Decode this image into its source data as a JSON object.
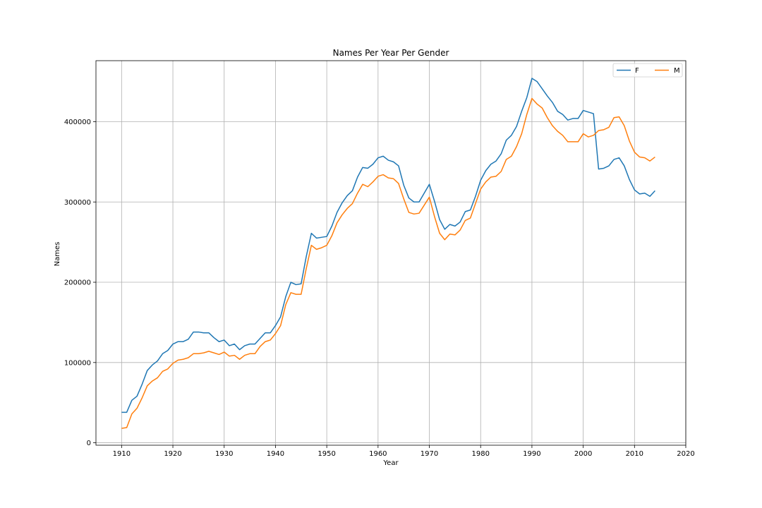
{
  "chart_data": {
    "type": "line",
    "title": "Names Per Year Per Gender",
    "xlabel": "Year",
    "ylabel": "Names",
    "xlim": [
      1905,
      2020
    ],
    "ylim": [
      -3000,
      476000
    ],
    "grid": true,
    "legend_position": "top-right",
    "xticks": [
      1910,
      1920,
      1930,
      1940,
      1950,
      1960,
      1970,
      1980,
      1990,
      2000,
      2010,
      2020
    ],
    "yticks": [
      0,
      100000,
      200000,
      300000,
      400000
    ],
    "x": [
      1910,
      1911,
      1912,
      1913,
      1914,
      1915,
      1916,
      1917,
      1918,
      1919,
      1920,
      1921,
      1922,
      1923,
      1924,
      1925,
      1926,
      1927,
      1928,
      1929,
      1930,
      1931,
      1932,
      1933,
      1934,
      1935,
      1936,
      1937,
      1938,
      1939,
      1940,
      1941,
      1942,
      1943,
      1944,
      1945,
      1946,
      1947,
      1948,
      1949,
      1950,
      1951,
      1952,
      1953,
      1954,
      1955,
      1956,
      1957,
      1958,
      1959,
      1960,
      1961,
      1962,
      1963,
      1964,
      1965,
      1966,
      1967,
      1968,
      1969,
      1970,
      1971,
      1972,
      1973,
      1974,
      1975,
      1976,
      1977,
      1978,
      1979,
      1980,
      1981,
      1982,
      1983,
      1984,
      1985,
      1986,
      1987,
      1988,
      1989,
      1990,
      1991,
      1992,
      1993,
      1994,
      1995,
      1996,
      1997,
      1998,
      1999,
      2000,
      2001,
      2002,
      2003,
      2004,
      2005,
      2006,
      2007,
      2008,
      2009,
      2010,
      2011,
      2012,
      2013,
      2014
    ],
    "series": [
      {
        "name": "F",
        "color": "#1f77b4",
        "values": [
          38000,
          38000,
          53000,
          58000,
          73000,
          90000,
          97000,
          102000,
          111000,
          115000,
          123000,
          126000,
          126000,
          129000,
          138000,
          138000,
          137000,
          137000,
          131000,
          126000,
          128000,
          121000,
          123000,
          116000,
          121000,
          123000,
          123000,
          130000,
          137000,
          137000,
          146000,
          157000,
          182000,
          200000,
          197000,
          198000,
          232000,
          261000,
          255000,
          256000,
          257000,
          270000,
          287000,
          299000,
          308000,
          314000,
          331000,
          343000,
          342000,
          347000,
          355000,
          357000,
          352000,
          350000,
          345000,
          321000,
          305000,
          300000,
          300000,
          311000,
          322000,
          301000,
          278000,
          266000,
          272000,
          270000,
          275000,
          288000,
          290000,
          307000,
          327000,
          339000,
          347000,
          351000,
          360000,
          377000,
          383000,
          394000,
          413000,
          430000,
          454000,
          450000,
          441000,
          432000,
          424000,
          413000,
          409000,
          402000,
          404000,
          404000,
          414000,
          412000,
          410000,
          341000,
          342000,
          345000,
          353000,
          355000,
          345000,
          328000,
          315000,
          310000,
          311000,
          307000,
          314000
        ]
      },
      {
        "name": "M",
        "color": "#ff7f0e",
        "values": [
          18000,
          19000,
          36000,
          43000,
          56000,
          71000,
          77000,
          81000,
          89000,
          92000,
          99000,
          103000,
          104000,
          106000,
          111000,
          111000,
          112000,
          114000,
          112000,
          110000,
          113000,
          108000,
          109000,
          104000,
          109000,
          111000,
          111000,
          120000,
          126000,
          128000,
          136000,
          146000,
          172000,
          187000,
          185000,
          185000,
          217000,
          246000,
          241000,
          243000,
          246000,
          258000,
          274000,
          284000,
          292000,
          298000,
          311000,
          322000,
          319000,
          325000,
          332000,
          334000,
          330000,
          329000,
          323000,
          304000,
          287000,
          285000,
          286000,
          296000,
          306000,
          282000,
          261000,
          253000,
          260000,
          259000,
          265000,
          277000,
          280000,
          298000,
          316000,
          325000,
          331000,
          332000,
          338000,
          353000,
          357000,
          369000,
          385000,
          409000,
          429000,
          422000,
          417000,
          405000,
          395000,
          388000,
          383000,
          375000,
          375000,
          375000,
          385000,
          381000,
          383000,
          389000,
          390000,
          393000,
          405000,
          406000,
          395000,
          376000,
          362000,
          356000,
          355000,
          351000,
          356000
        ]
      }
    ]
  }
}
